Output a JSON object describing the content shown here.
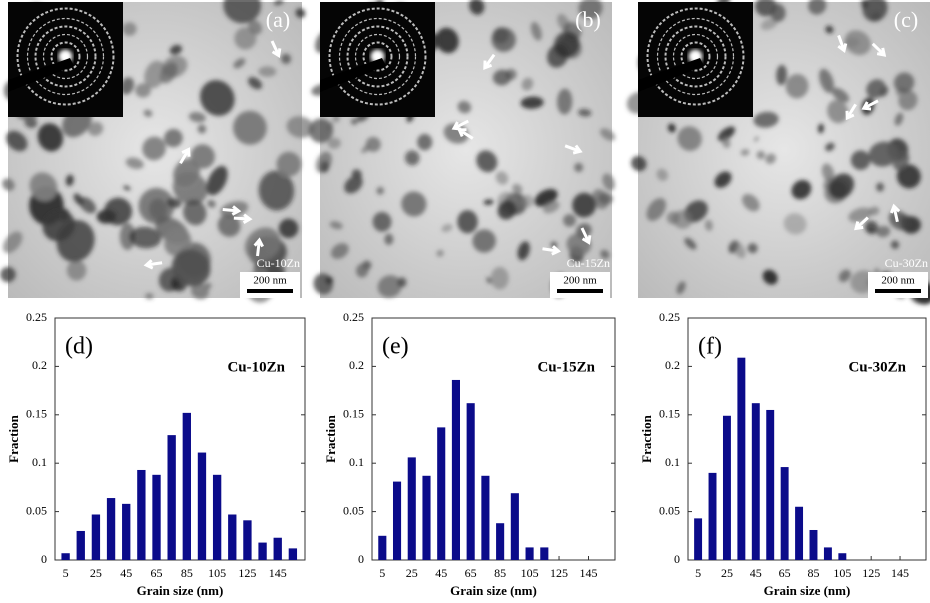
{
  "images": [
    {
      "label": "(a)",
      "sample": "Cu-10Zn",
      "scale_bar": "200 nm"
    },
    {
      "label": "(b)",
      "sample": "Cu-15Zn",
      "scale_bar": "200 nm"
    },
    {
      "label": "(c)",
      "sample": "Cu-30Zn",
      "scale_bar": "200 nm"
    }
  ],
  "chart_data": [
    {
      "type": "bar",
      "label": "(d)",
      "annotation": "Cu-10Zn",
      "xlabel": "Grain size (nm)",
      "ylabel": "Fraction",
      "color": "#0b0b8a",
      "x": [
        5,
        15,
        25,
        35,
        45,
        55,
        65,
        75,
        85,
        95,
        105,
        115,
        125,
        135,
        145,
        155
      ],
      "values": [
        0.007,
        0.03,
        0.047,
        0.064,
        0.058,
        0.093,
        0.088,
        0.129,
        0.152,
        0.111,
        0.088,
        0.047,
        0.041,
        0.018,
        0.023,
        0.012
      ],
      "xlim": [
        -2,
        163
      ],
      "xticks": [
        5,
        25,
        45,
        65,
        85,
        105,
        125,
        145
      ],
      "ylim": [
        0,
        0.25
      ],
      "yticks": [
        0,
        0.05,
        0.1,
        0.15,
        0.2,
        0.25
      ]
    },
    {
      "type": "bar",
      "label": "(e)",
      "annotation": "Cu-15Zn",
      "xlabel": "Grain size (nm)",
      "ylabel": "Fraction",
      "color": "#0b0b8a",
      "x": [
        5,
        15,
        25,
        35,
        45,
        55,
        65,
        75,
        85,
        95,
        105,
        115
      ],
      "values": [
        0.025,
        0.081,
        0.106,
        0.087,
        0.137,
        0.186,
        0.162,
        0.087,
        0.038,
        0.069,
        0.013,
        0.013
      ],
      "xlim": [
        -2,
        163
      ],
      "xticks": [
        5,
        25,
        45,
        65,
        85,
        105,
        125,
        145
      ],
      "ylim": [
        0,
        0.25
      ],
      "yticks": [
        0,
        0.05,
        0.1,
        0.15,
        0.2,
        0.25
      ]
    },
    {
      "type": "bar",
      "label": "(f)",
      "annotation": "Cu-30Zn",
      "xlabel": "Grain size (nm)",
      "ylabel": "Fraction",
      "color": "#0b0b8a",
      "x": [
        5,
        15,
        25,
        35,
        45,
        55,
        65,
        75,
        85,
        95,
        105
      ],
      "values": [
        0.043,
        0.09,
        0.149,
        0.209,
        0.162,
        0.155,
        0.096,
        0.055,
        0.031,
        0.013,
        0.007
      ],
      "xlim": [
        -2,
        163
      ],
      "xticks": [
        5,
        25,
        45,
        65,
        85,
        105,
        125,
        145
      ],
      "ylim": [
        0,
        0.25
      ],
      "yticks": [
        0,
        0.05,
        0.1,
        0.15,
        0.2,
        0.25
      ]
    }
  ]
}
